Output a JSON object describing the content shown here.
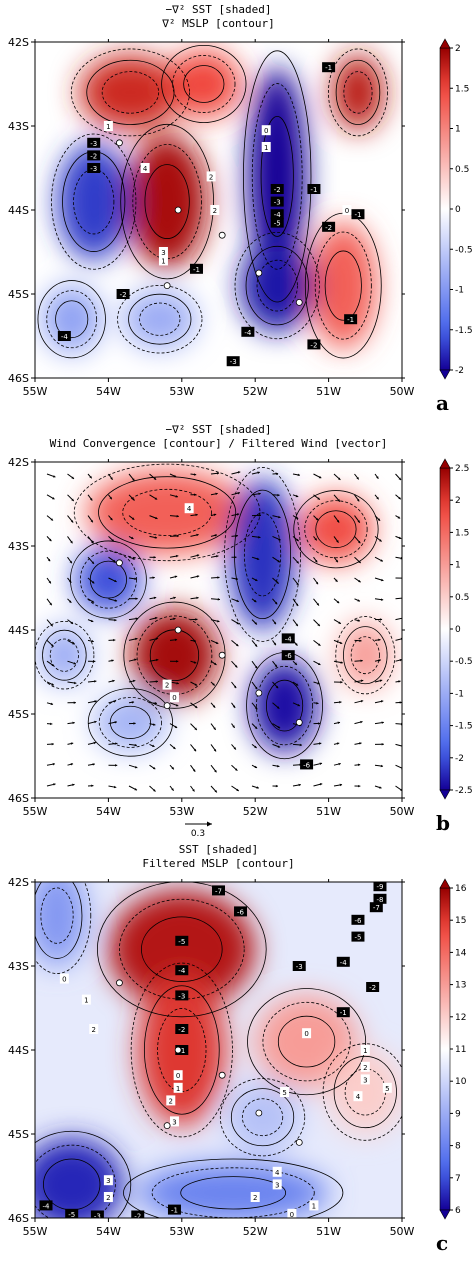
{
  "chart_data": [
    {
      "type": "heatmap",
      "panel_letter": "a",
      "title_lines": [
        "−∇² SST [shaded]",
        "∇² MSLP [contour]"
      ],
      "xlabels": [
        "55W",
        "54W",
        "53W",
        "52W",
        "51W",
        "50W"
      ],
      "ylabels": [
        "42S",
        "43S",
        "44S",
        "45S",
        "46S"
      ],
      "lon_range": [
        -55,
        -50
      ],
      "lat_range": [
        -46,
        -42
      ],
      "colorbar": {
        "ticks": [
          "2",
          "1.5",
          "1",
          "0.5",
          "0",
          "-0.5",
          "-1",
          "-1.5",
          "-2"
        ],
        "range": [
          -2,
          2
        ]
      },
      "shading_blobs": [
        {
          "lon": -53.2,
          "lat": -43.9,
          "rx": 0.55,
          "ry": 0.8,
          "value": 1.9
        },
        {
          "lon": -53.7,
          "lat": -42.6,
          "rx": 0.7,
          "ry": 0.45,
          "value": 1.7
        },
        {
          "lon": -52.7,
          "lat": -42.5,
          "rx": 0.5,
          "ry": 0.4,
          "value": 1.5
        },
        {
          "lon": -50.6,
          "lat": -42.6,
          "rx": 0.35,
          "ry": 0.45,
          "value": 1.8
        },
        {
          "lon": -50.8,
          "lat": -44.9,
          "rx": 0.45,
          "ry": 0.75,
          "value": 1.3
        },
        {
          "lon": -54.2,
          "lat": -43.9,
          "rx": 0.5,
          "ry": 0.7,
          "value": -1.7
        },
        {
          "lon": -51.7,
          "lat": -43.6,
          "rx": 0.4,
          "ry": 1.3,
          "value": -2.0
        },
        {
          "lon": -51.7,
          "lat": -44.9,
          "rx": 0.5,
          "ry": 0.55,
          "value": -1.9
        },
        {
          "lon": -54.5,
          "lat": -45.3,
          "rx": 0.4,
          "ry": 0.4,
          "value": -0.9
        },
        {
          "lon": -53.3,
          "lat": -45.3,
          "rx": 0.5,
          "ry": 0.35,
          "value": -0.8
        }
      ],
      "points": [
        [
          -53.85,
          -43.2
        ],
        [
          -53.05,
          -44.0
        ],
        [
          -52.45,
          -44.3
        ],
        [
          -53.2,
          -44.9
        ],
        [
          -51.95,
          -44.75
        ],
        [
          -51.4,
          -45.1
        ]
      ],
      "contour_labels": [
        {
          "text": "-1",
          "lon": -51.0,
          "lat": -42.3
        },
        {
          "text": "1",
          "lon": -54.0,
          "lat": -43.0
        },
        {
          "text": "-3",
          "lon": -54.2,
          "lat": -43.2
        },
        {
          "text": "-2",
          "lon": -54.2,
          "lat": -43.35
        },
        {
          "text": "-3",
          "lon": -54.2,
          "lat": -43.5
        },
        {
          "text": "4",
          "lon": -53.5,
          "lat": -43.5
        },
        {
          "text": "2",
          "lon": -52.6,
          "lat": -43.6
        },
        {
          "text": "0",
          "lon": -51.85,
          "lat": -43.05
        },
        {
          "text": "1",
          "lon": -51.85,
          "lat": -43.25
        },
        {
          "text": "-2",
          "lon": -51.7,
          "lat": -43.75
        },
        {
          "text": "-3",
          "lon": -51.7,
          "lat": -43.9
        },
        {
          "text": "-4",
          "lon": -51.7,
          "lat": -44.05
        },
        {
          "text": "-5",
          "lon": -51.7,
          "lat": -44.15
        },
        {
          "text": "-1",
          "lon": -51.2,
          "lat": -43.75
        },
        {
          "text": "0",
          "lon": -50.75,
          "lat": -44.0
        },
        {
          "text": "-1",
          "lon": -50.6,
          "lat": -44.05
        },
        {
          "text": "2",
          "lon": -52.55,
          "lat": -44.0
        },
        {
          "text": "-2",
          "lon": -51.0,
          "lat": -44.2
        },
        {
          "text": "3",
          "lon": -53.25,
          "lat": -44.5
        },
        {
          "text": "1",
          "lon": -53.25,
          "lat": -44.6
        },
        {
          "text": "-1",
          "lon": -52.8,
          "lat": -44.7
        },
        {
          "text": "-2",
          "lon": -53.8,
          "lat": -45.0
        },
        {
          "text": "-4",
          "lon": -54.6,
          "lat": -45.5
        },
        {
          "text": "-1",
          "lon": -50.7,
          "lat": -45.3
        },
        {
          "text": "-4",
          "lon": -52.1,
          "lat": -45.45
        },
        {
          "text": "-2",
          "lon": -51.2,
          "lat": -45.6
        },
        {
          "text": "-3",
          "lon": -52.3,
          "lat": -45.8
        }
      ]
    },
    {
      "type": "heatmap",
      "panel_letter": "b",
      "title_lines": [
        "−∇² SST [shaded]",
        "Wind Convergence [contour] / Filtered Wind [vector]"
      ],
      "xlabels": [
        "55W",
        "54W",
        "53W",
        "52W",
        "51W",
        "50W"
      ],
      "ylabels": [
        "42S",
        "43S",
        "44S",
        "45S",
        "46S"
      ],
      "lon_range": [
        -55,
        -50
      ],
      "lat_range": [
        -46,
        -42
      ],
      "colorbar": {
        "ticks": [
          "2.5",
          "2",
          "1.5",
          "1",
          "0.5",
          "0",
          "-0.5",
          "-1",
          "-1.5",
          "-2",
          "-2.5"
        ],
        "range": [
          -2.5,
          2.5
        ]
      },
      "vector_reference": "0.3",
      "shading_blobs": [
        {
          "lon": -53.1,
          "lat": -44.3,
          "rx": 0.6,
          "ry": 0.55,
          "value": 2.4
        },
        {
          "lon": -53.2,
          "lat": -42.6,
          "rx": 1.1,
          "ry": 0.5,
          "value": 1.6
        },
        {
          "lon": -50.9,
          "lat": -42.8,
          "rx": 0.5,
          "ry": 0.4,
          "value": 1.8
        },
        {
          "lon": -50.5,
          "lat": -44.3,
          "rx": 0.35,
          "ry": 0.4,
          "value": 1.0
        },
        {
          "lon": -54.0,
          "lat": -43.4,
          "rx": 0.45,
          "ry": 0.4,
          "value": -2.0
        },
        {
          "lon": -51.9,
          "lat": -43.1,
          "rx": 0.45,
          "ry": 0.9,
          "value": -2.2
        },
        {
          "lon": -51.6,
          "lat": -44.9,
          "rx": 0.45,
          "ry": 0.55,
          "value": -2.4
        },
        {
          "lon": -54.6,
          "lat": -44.3,
          "rx": 0.35,
          "ry": 0.35,
          "value": -1.0
        },
        {
          "lon": -53.7,
          "lat": -45.1,
          "rx": 0.5,
          "ry": 0.35,
          "value": -0.9
        }
      ],
      "points": [
        [
          -53.85,
          -43.2
        ],
        [
          -53.05,
          -44.0
        ],
        [
          -52.45,
          -44.3
        ],
        [
          -53.2,
          -44.9
        ],
        [
          -51.95,
          -44.75
        ],
        [
          -51.4,
          -45.1
        ]
      ],
      "contour_labels": [
        {
          "text": "4",
          "lon": -52.9,
          "lat": -42.55
        },
        {
          "text": "-4",
          "lon": -51.55,
          "lat": -44.1
        },
        {
          "text": "-6",
          "lon": -51.55,
          "lat": -44.3
        },
        {
          "text": "2",
          "lon": -53.2,
          "lat": -44.65
        },
        {
          "text": "0",
          "lon": -53.1,
          "lat": -44.8
        },
        {
          "text": "-6",
          "lon": -51.3,
          "lat": -45.6
        }
      ]
    },
    {
      "type": "heatmap",
      "panel_letter": "c",
      "title_lines": [
        "SST [shaded]",
        "Filtered MSLP [contour]"
      ],
      "xlabels": [
        "55W",
        "54W",
        "53W",
        "52W",
        "51W",
        "50W"
      ],
      "ylabels": [
        "42S",
        "43S",
        "44S",
        "45S",
        "46S"
      ],
      "lon_range": [
        -55,
        -50
      ],
      "lat_range": [
        -46,
        -42
      ],
      "colorbar": {
        "ticks": [
          "16",
          "15",
          "14",
          "13",
          "12",
          "11",
          "10",
          "9",
          "8",
          "7",
          "6"
        ],
        "range": [
          6,
          16
        ]
      },
      "shading_blobs": [
        {
          "lon": -53.0,
          "lat": -42.8,
          "rx": 1.0,
          "ry": 0.7,
          "value": 15.6
        },
        {
          "lon": -53.0,
          "lat": -44.0,
          "rx": 0.6,
          "ry": 0.9,
          "value": 15.0
        },
        {
          "lon": -51.3,
          "lat": -43.9,
          "rx": 0.7,
          "ry": 0.55,
          "value": 13.0
        },
        {
          "lon": -50.5,
          "lat": -44.5,
          "rx": 0.5,
          "ry": 0.5,
          "value": 12.0
        },
        {
          "lon": -54.5,
          "lat": -45.6,
          "rx": 0.7,
          "ry": 0.55,
          "value": 6.5
        },
        {
          "lon": -54.7,
          "lat": -42.4,
          "rx": 0.4,
          "ry": 0.6,
          "value": 8.5
        },
        {
          "lon": -52.3,
          "lat": -45.7,
          "rx": 1.3,
          "ry": 0.35,
          "value": 8.0
        },
        {
          "lon": -51.9,
          "lat": -44.8,
          "rx": 0.5,
          "ry": 0.4,
          "value": 9.5
        }
      ],
      "points": [
        [
          -53.85,
          -43.2
        ],
        [
          -53.05,
          -44.0
        ],
        [
          -52.45,
          -44.3
        ],
        [
          -53.2,
          -44.9
        ],
        [
          -51.95,
          -44.75
        ],
        [
          -51.4,
          -45.1
        ]
      ],
      "contour_labels": [
        {
          "text": "-7",
          "lon": -52.5,
          "lat": -42.1
        },
        {
          "text": "-6",
          "lon": -52.2,
          "lat": -42.35
        },
        {
          "text": "-5",
          "lon": -53.0,
          "lat": -42.7
        },
        {
          "text": "-4",
          "lon": -53.0,
          "lat": -43.05
        },
        {
          "text": "-3",
          "lon": -53.0,
          "lat": -43.35
        },
        {
          "text": "-2",
          "lon": -53.0,
          "lat": -43.75
        },
        {
          "text": "-1",
          "lon": -53.0,
          "lat": -44.0
        },
        {
          "text": "0",
          "lon": -53.05,
          "lat": -44.3
        },
        {
          "text": "1",
          "lon": -53.05,
          "lat": -44.45
        },
        {
          "text": "2",
          "lon": -53.15,
          "lat": -44.6
        },
        {
          "text": "3",
          "lon": -53.1,
          "lat": -44.85
        },
        {
          "text": "0",
          "lon": -54.6,
          "lat": -43.15
        },
        {
          "text": "1",
          "lon": -54.3,
          "lat": -43.4
        },
        {
          "text": "2",
          "lon": -54.2,
          "lat": -43.75
        },
        {
          "text": "-9",
          "lon": -50.3,
          "lat": -42.05
        },
        {
          "text": "-8",
          "lon": -50.3,
          "lat": -42.2
        },
        {
          "text": "-7",
          "lon": -50.35,
          "lat": -42.3
        },
        {
          "text": "-6",
          "lon": -50.6,
          "lat": -42.45
        },
        {
          "text": "-5",
          "lon": -50.6,
          "lat": -42.65
        },
        {
          "text": "-4",
          "lon": -50.8,
          "lat": -42.95
        },
        {
          "text": "-3",
          "lon": -51.4,
          "lat": -43.0
        },
        {
          "text": "-2",
          "lon": -50.4,
          "lat": -43.25
        },
        {
          "text": "-1",
          "lon": -50.8,
          "lat": -43.55
        },
        {
          "text": "0",
          "lon": -51.3,
          "lat": -43.8
        },
        {
          "text": "1",
          "lon": -50.5,
          "lat": -44.0
        },
        {
          "text": "2",
          "lon": -50.5,
          "lat": -44.2
        },
        {
          "text": "3",
          "lon": -50.5,
          "lat": -44.35
        },
        {
          "text": "4",
          "lon": -50.6,
          "lat": -44.55
        },
        {
          "text": "5",
          "lon": -50.2,
          "lat": -44.45
        },
        {
          "text": "5",
          "lon": -51.6,
          "lat": -44.5
        },
        {
          "text": "4",
          "lon": -51.7,
          "lat": -45.45
        },
        {
          "text": "3",
          "lon": -51.7,
          "lat": -45.6
        },
        {
          "text": "2",
          "lon": -52.0,
          "lat": -45.75
        },
        {
          "text": "1",
          "lon": -51.2,
          "lat": -45.85
        },
        {
          "text": "0",
          "lon": -51.5,
          "lat": -45.95
        },
        {
          "text": "3",
          "lon": -54.0,
          "lat": -45.55
        },
        {
          "text": "2",
          "lon": -54.0,
          "lat": -45.75
        },
        {
          "text": "-1",
          "lon": -53.1,
          "lat": -45.9
        },
        {
          "text": "-2",
          "lon": -53.6,
          "lat": -45.97
        },
        {
          "text": "-4",
          "lon": -54.85,
          "lat": -45.85
        },
        {
          "text": "-5",
          "lon": -54.5,
          "lat": -45.95
        },
        {
          "text": "-3",
          "lon": -54.15,
          "lat": -45.97
        }
      ]
    }
  ]
}
